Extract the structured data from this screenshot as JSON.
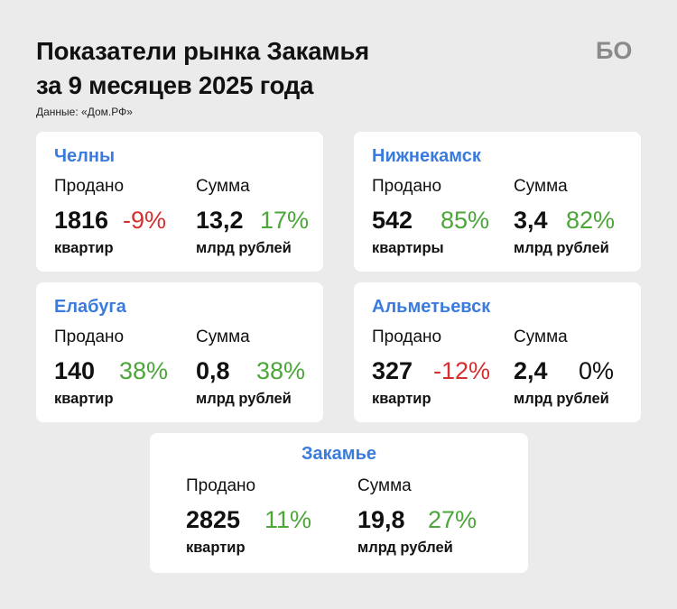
{
  "header": {
    "title_line1": "Показатели рынка Закамья",
    "title_line2": "за 9 месяцев 2025 года",
    "source": "Данные: «Дом.РФ»",
    "logo_text": "БО"
  },
  "colors": {
    "city": "#3a7bde",
    "positive": "#4ca63a",
    "negative": "#d62f2f",
    "neutral": "#111111",
    "card": "#ffffff",
    "background": "#ebebeb"
  },
  "cards": [
    {
      "city": "Челны",
      "sold": {
        "label": "Продано",
        "value": "1816",
        "change": "-9%",
        "change_sign": "negative",
        "unit": "квартир"
      },
      "sum": {
        "label": "Сумма",
        "value": "13,2",
        "change": "17%",
        "change_sign": "positive",
        "unit": "млрд рублей"
      }
    },
    {
      "city": "Нижнекамск",
      "sold": {
        "label": "Продано",
        "value": "542",
        "change": "85%",
        "change_sign": "positive",
        "unit": "квартиры"
      },
      "sum": {
        "label": "Сумма",
        "value": "3,4",
        "change": "82%",
        "change_sign": "positive",
        "unit": "млрд рублей"
      }
    },
    {
      "city": "Елабуга",
      "sold": {
        "label": "Продано",
        "value": "140",
        "change": "38%",
        "change_sign": "positive",
        "unit": "квартир"
      },
      "sum": {
        "label": "Сумма",
        "value": "0,8",
        "change": "38%",
        "change_sign": "positive",
        "unit": "млрд рублей"
      }
    },
    {
      "city": "Альметьевск",
      "sold": {
        "label": "Продано",
        "value": "327",
        "change": "-12%",
        "change_sign": "negative",
        "unit": "квартир"
      },
      "sum": {
        "label": "Сумма",
        "value": "2,4",
        "change": "0%",
        "change_sign": "neutral",
        "unit": "млрд рублей"
      }
    }
  ],
  "summary": {
    "city": "Закамье",
    "sold": {
      "label": "Продано",
      "value": "2825",
      "change": "11%",
      "change_sign": "positive",
      "unit": "квартир"
    },
    "sum": {
      "label": "Сумма",
      "value": "19,8",
      "change": "27%",
      "change_sign": "positive",
      "unit": "млрд рублей"
    }
  }
}
